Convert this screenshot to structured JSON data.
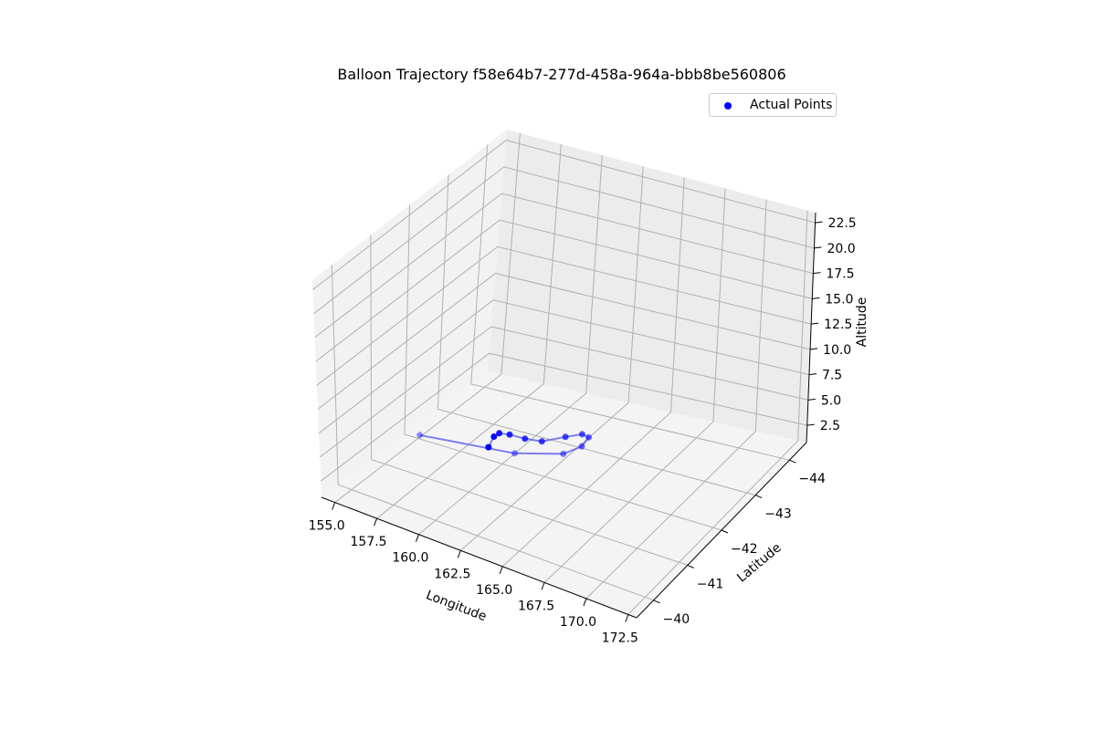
{
  "chart_data": {
    "type": "line",
    "title": "Balloon Trajectory f58e64b7-277d-458a-964a-bbb8be560806",
    "xlabel": "Longitude",
    "ylabel": "Latitude",
    "zlabel": "Altitude",
    "xlim": [
      154.2,
      173.0
    ],
    "ylim": [
      -44.5,
      -39.5
    ],
    "zlim": [
      0.8,
      23.5
    ],
    "xticks": [
      "155.0",
      "157.5",
      "160.0",
      "162.5",
      "165.0",
      "167.5",
      "170.0",
      "172.5"
    ],
    "yticks": [
      "−40",
      "−41",
      "−42",
      "−43",
      "−44"
    ],
    "zticks": [
      "2.5",
      "5.0",
      "7.5",
      "10.0",
      "12.5",
      "15.0",
      "17.5",
      "20.0",
      "22.5"
    ],
    "grid": true,
    "legend": {
      "position": "top-right",
      "entries": [
        "Actual Points"
      ]
    },
    "colors": {
      "points": "#0000ff",
      "line": "#5555ee"
    },
    "series": [
      {
        "name": "Actual Points",
        "x": [
          162.6,
          162.3,
          162.2,
          162.2,
          162.3,
          162.5,
          162.7,
          162.9,
          163.1,
          163.1,
          162.8,
          161.5,
          157.9
        ],
        "y": [
          -40.3,
          -40.6,
          -40.8,
          -41.1,
          -41.5,
          -41.9,
          -42.5,
          -42.9,
          -43.0,
          -42.8,
          -42.4,
          -41.6,
          -40.6
        ],
        "z": [
          8.6,
          8.6,
          8.3,
          7.3,
          5.8,
          4.5,
          3.3,
          2.5,
          2.0,
          1.7,
          2.0,
          3.7,
          6.4
        ]
      }
    ]
  }
}
